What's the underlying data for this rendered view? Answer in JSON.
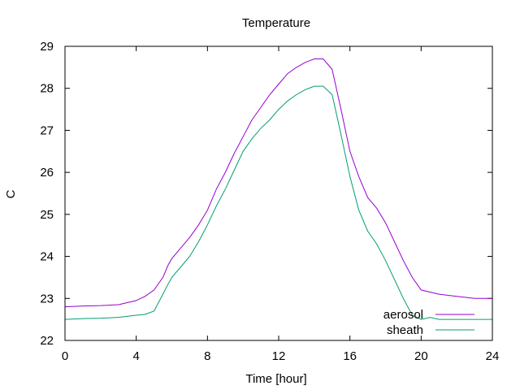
{
  "chart_data": {
    "type": "line",
    "title": "Temperature",
    "xlabel": "Time [hour]",
    "ylabel": "C",
    "xlim": [
      0,
      24
    ],
    "ylim": [
      22,
      29
    ],
    "xticks": [
      0,
      4,
      8,
      12,
      16,
      20,
      24
    ],
    "yticks": [
      22,
      23,
      24,
      25,
      26,
      27,
      28,
      29
    ],
    "grid": false,
    "legend_position": "bottom-right",
    "series": [
      {
        "name": "aerosol",
        "color": "#9400d3",
        "x": [
          0,
          1,
          2,
          3,
          4,
          4.5,
          5,
          5.5,
          5.8,
          6,
          6.5,
          7,
          7.5,
          8,
          8.5,
          9,
          9.5,
          10,
          10.5,
          11,
          11.5,
          12,
          12.5,
          13,
          13.5,
          14,
          14.5,
          15,
          15.5,
          16,
          16.5,
          17,
          17.5,
          18,
          18.5,
          19,
          19.5,
          20,
          20.5,
          21,
          22,
          23,
          24
        ],
        "y": [
          22.8,
          22.82,
          22.83,
          22.85,
          22.95,
          23.05,
          23.2,
          23.5,
          23.8,
          23.95,
          24.2,
          24.45,
          24.75,
          25.1,
          25.6,
          26.0,
          26.45,
          26.85,
          27.25,
          27.55,
          27.85,
          28.1,
          28.35,
          28.5,
          28.62,
          28.7,
          28.7,
          28.45,
          27.5,
          26.5,
          25.9,
          25.4,
          25.15,
          24.8,
          24.35,
          23.9,
          23.5,
          23.2,
          23.15,
          23.1,
          23.05,
          23.0,
          23.0
        ]
      },
      {
        "name": "sheath",
        "color": "#009e73",
        "x": [
          0,
          1,
          2,
          3,
          4,
          4.5,
          5,
          5.5,
          5.8,
          6,
          6.5,
          7,
          7.5,
          8,
          8.5,
          9,
          9.5,
          10,
          10.5,
          11,
          11.5,
          12,
          12.5,
          13,
          13.5,
          14,
          14.5,
          15,
          15.5,
          16,
          16.5,
          17,
          17.5,
          18,
          18.5,
          19,
          19.5,
          20,
          20.5,
          21,
          22,
          23,
          24
        ],
        "y": [
          22.5,
          22.52,
          22.53,
          22.55,
          22.6,
          22.62,
          22.7,
          23.1,
          23.35,
          23.5,
          23.75,
          24.0,
          24.35,
          24.75,
          25.2,
          25.6,
          26.05,
          26.5,
          26.8,
          27.05,
          27.25,
          27.5,
          27.7,
          27.85,
          27.97,
          28.05,
          28.05,
          27.85,
          26.9,
          25.9,
          25.1,
          24.6,
          24.3,
          23.9,
          23.45,
          23.0,
          22.6,
          22.5,
          22.55,
          22.5,
          22.5,
          22.5,
          22.5
        ]
      }
    ]
  }
}
